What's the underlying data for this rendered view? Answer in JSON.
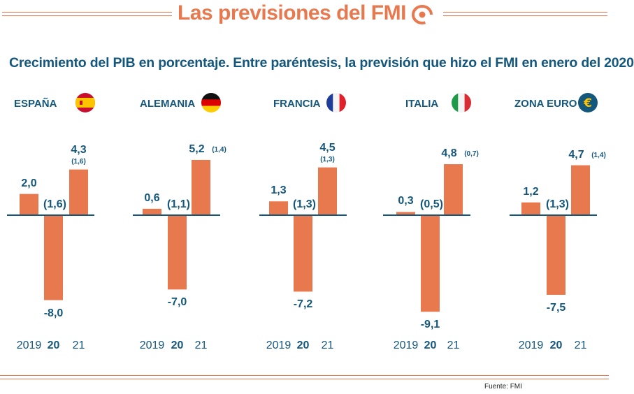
{
  "header": {
    "title": "Las previsiones del FMI"
  },
  "subtitle": "Crecimiento del PIB en porcentaje. Entre paréntesis, la previsión que hizo el FMI en enero del 2020",
  "source": "Fuente: FMI",
  "colors": {
    "bar": "#e8794e",
    "text": "#14577d",
    "accent": "#e8794e"
  },
  "chart_data": {
    "type": "bar",
    "categories": [
      "2019",
      "20",
      "21"
    ],
    "ylim": [
      -9.1,
      5.2
    ],
    "panels": [
      {
        "country": "ESPAÑA",
        "flag": "spain-flag-icon",
        "values": [
          2.0,
          -8.0,
          4.3
        ],
        "labels": [
          "2,0",
          "-8,0",
          "4,3"
        ],
        "prev_2020": "(1,6)",
        "prev_2021": "(1,6)"
      },
      {
        "country": "ALEMANIA",
        "flag": "germany-flag-icon",
        "values": [
          0.6,
          -7.0,
          5.2
        ],
        "labels": [
          "0,6",
          "-7,0",
          "5,2"
        ],
        "prev_2020": "(1,1)",
        "prev_2021": "(1,4)"
      },
      {
        "country": "FRANCIA",
        "flag": "france-flag-icon",
        "values": [
          1.3,
          -7.2,
          4.5
        ],
        "labels": [
          "1,3",
          "-7,2",
          "4,5"
        ],
        "prev_2020": "(1,3)",
        "prev_2021": "(1,3)"
      },
      {
        "country": "ITALIA",
        "flag": "italy-flag-icon",
        "values": [
          0.3,
          -9.1,
          4.8
        ],
        "labels": [
          "0,3",
          "-9,1",
          "4,8"
        ],
        "prev_2020": "(0,5)",
        "prev_2021": "(0,7)"
      },
      {
        "country": "ZONA EURO",
        "flag": "euro-icon",
        "values": [
          1.2,
          -7.5,
          4.7
        ],
        "labels": [
          "1,2",
          "-7,5",
          "4,7"
        ],
        "prev_2020": "(1,3)",
        "prev_2021": "(1,4)"
      }
    ]
  }
}
